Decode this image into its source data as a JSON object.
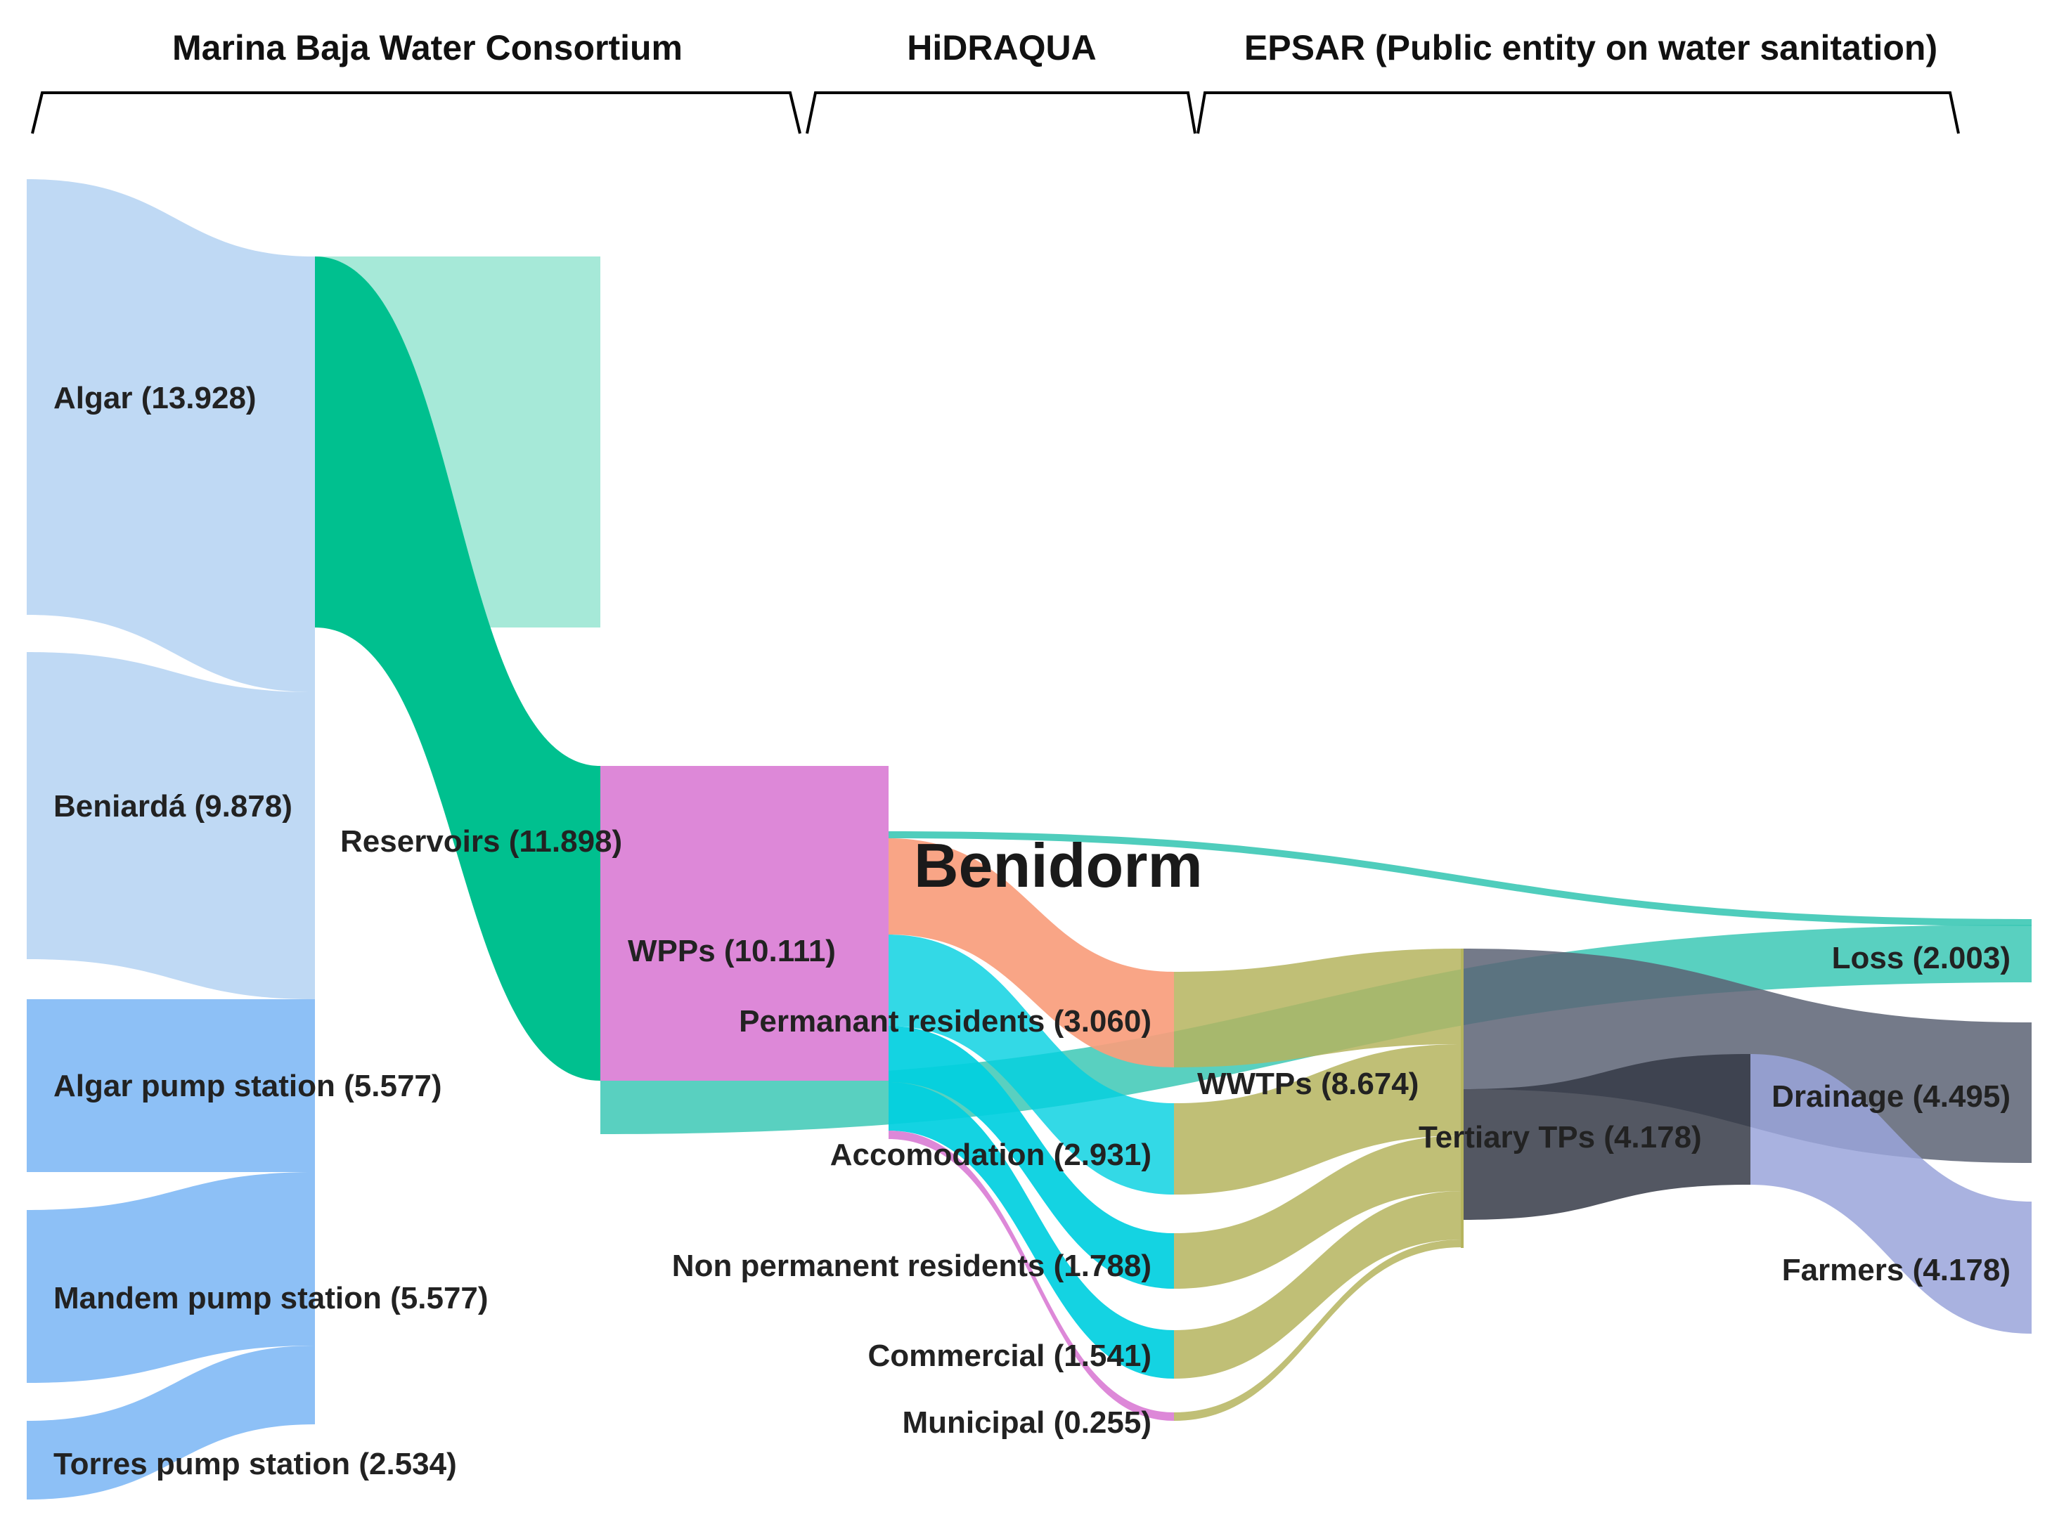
{
  "title": "Benidorm",
  "groups": [
    {
      "id": "consortium",
      "label": "Marina Baja Water Consortium"
    },
    {
      "id": "hidraqua",
      "label": "HiDRAQUA"
    },
    {
      "id": "epsar",
      "label": "EPSAR (Public entity on water sanitation)"
    }
  ],
  "colors": {
    "lightblue": "#bcd7f3",
    "midblue": "#87bdf6",
    "green": "#00c08f",
    "pink": "#dd88d8",
    "salmon": "#f99d7c",
    "cyan": "#00cfe0",
    "olive": "#b5b45e",
    "teal": "#3cc8b5",
    "slate": "#5c6374",
    "dark": "#353a47",
    "periwinkle": "#9aa4db"
  },
  "nodes": [
    {
      "id": "algar",
      "label": "Algar (13.928)",
      "value": 13.928
    },
    {
      "id": "beniarda",
      "label": "Beniardá (9.878)",
      "value": 9.878
    },
    {
      "id": "algar_ps",
      "label": "Algar pump station (5.577)",
      "value": 5.577
    },
    {
      "id": "mandem_ps",
      "label": "Mandem pump station (5.577)",
      "value": 5.577
    },
    {
      "id": "torres_ps",
      "label": "Torres pump station (2.534)",
      "value": 2.534
    },
    {
      "id": "reservoirs",
      "label": "Reservoirs (11.898)",
      "value": 11.898
    },
    {
      "id": "wpps",
      "label": "WPPs (10.111)",
      "value": 10.111
    },
    {
      "id": "perm",
      "label": "Permanant residents (3.060)",
      "value": 3.06
    },
    {
      "id": "accom",
      "label": "Accomodation (2.931)",
      "value": 2.931
    },
    {
      "id": "nonperm",
      "label": "Non permanent residents (1.788)",
      "value": 1.788
    },
    {
      "id": "commercial",
      "label": "Commercial (1.541)",
      "value": 1.541
    },
    {
      "id": "municipal",
      "label": "Municipal (0.255)",
      "value": 0.255
    },
    {
      "id": "wwtps",
      "label": "WWTPs (8.674)",
      "value": 8.674
    },
    {
      "id": "tertiary",
      "label": "Tertiary TPs (4.178)",
      "value": 4.178
    },
    {
      "id": "loss",
      "label": "Loss (2.003)",
      "value": 2.003
    },
    {
      "id": "drainage",
      "label": "Drainage (4.495)",
      "value": 4.495
    },
    {
      "id": "farmers",
      "label": "Farmers (4.178)",
      "value": 4.178
    }
  ],
  "links": [
    {
      "source": "algar",
      "target": "reservoirs",
      "value": 13.928
    },
    {
      "source": "beniarda",
      "target": "reservoirs",
      "value": 9.878
    },
    {
      "source": "algar_ps",
      "target": "reservoirs",
      "value": 5.577
    },
    {
      "source": "mandem_ps",
      "target": "reservoirs",
      "value": 5.577
    },
    {
      "source": "torres_ps",
      "target": "reservoirs",
      "value": 2.534
    },
    {
      "source": "reservoirs",
      "target": "wpps",
      "value": 10.111
    },
    {
      "source": "reservoirs",
      "target": "loss",
      "value": 1.787
    },
    {
      "source": "wpps",
      "target": "loss",
      "value": 0.216
    },
    {
      "source": "wpps",
      "target": "perm",
      "value": 3.06
    },
    {
      "source": "wpps",
      "target": "accom",
      "value": 2.931
    },
    {
      "source": "wpps",
      "target": "nonperm",
      "value": 1.788
    },
    {
      "source": "wpps",
      "target": "commercial",
      "value": 1.541
    },
    {
      "source": "wpps",
      "target": "municipal",
      "value": 0.255
    },
    {
      "source": "perm",
      "target": "wwtps",
      "value": 3.06
    },
    {
      "source": "accom",
      "target": "wwtps",
      "value": 2.931
    },
    {
      "source": "nonperm",
      "target": "wwtps",
      "value": 1.788
    },
    {
      "source": "commercial",
      "target": "wwtps",
      "value": 1.541
    },
    {
      "source": "municipal",
      "target": "wwtps",
      "value": 0.255
    },
    {
      "source": "wwtps",
      "target": "drainage",
      "value": 4.495
    },
    {
      "source": "wwtps",
      "target": "tertiary",
      "value": 4.178
    },
    {
      "source": "tertiary",
      "target": "farmers",
      "value": 4.178
    }
  ]
}
